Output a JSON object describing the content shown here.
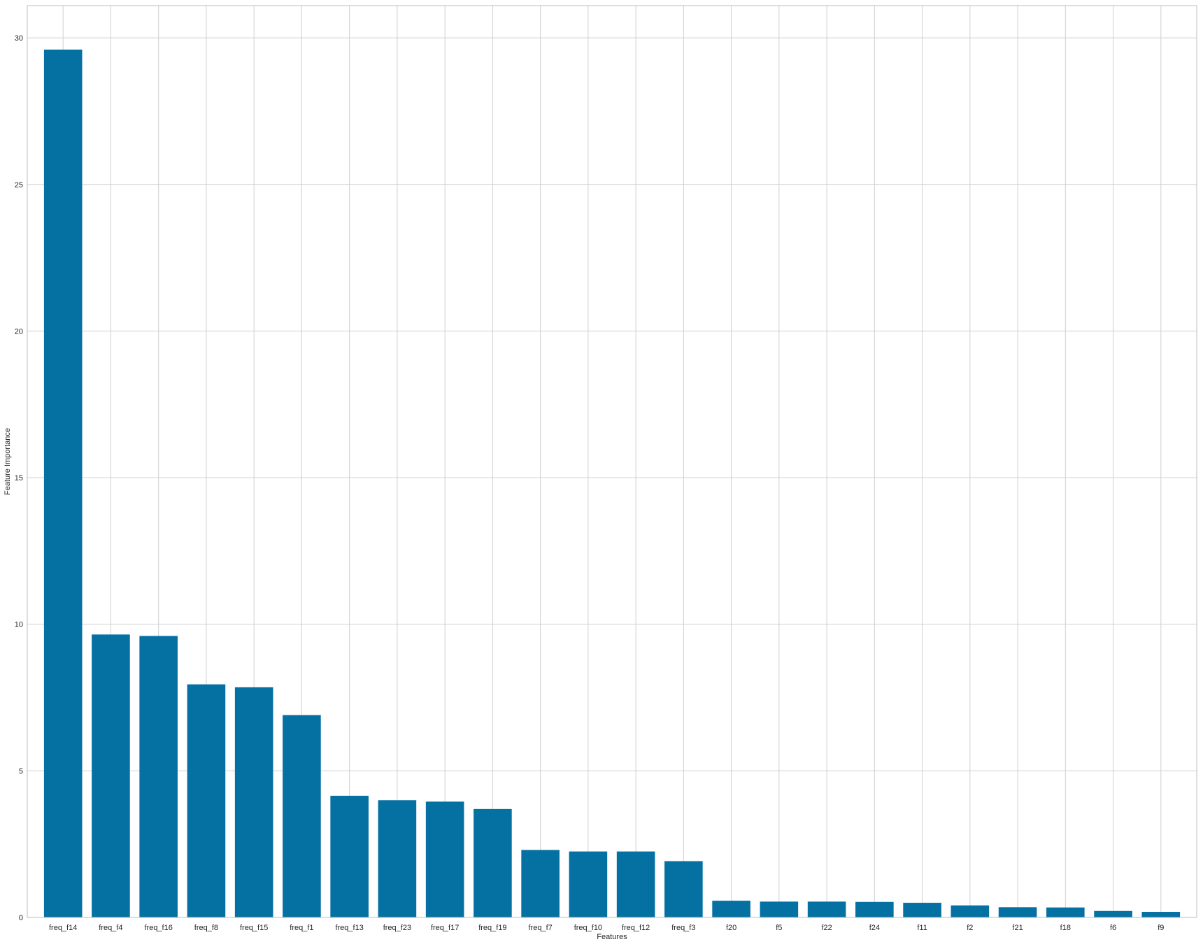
{
  "chart_data": {
    "type": "bar",
    "title": "",
    "xlabel": "Features",
    "ylabel": "Feature Importance",
    "categories": [
      "freq_f14",
      "freq_f4",
      "freq_f16",
      "freq_f8",
      "freq_f15",
      "freq_f1",
      "freq_f13",
      "freq_f23",
      "freq_f17",
      "freq_f19",
      "freq_f7",
      "freq_f10",
      "freq_f12",
      "freq_f3",
      "f20",
      "f5",
      "f22",
      "f24",
      "f11",
      "f2",
      "f21",
      "f18",
      "f6",
      "f9"
    ],
    "values": [
      29.6,
      9.65,
      9.6,
      7.95,
      7.85,
      6.9,
      4.15,
      4.0,
      3.95,
      3.7,
      2.3,
      2.25,
      2.25,
      1.92,
      0.57,
      0.54,
      0.54,
      0.53,
      0.5,
      0.41,
      0.35,
      0.34,
      0.22,
      0.19
    ],
    "ylim": [
      0,
      31.1
    ],
    "yticks": [
      0,
      5,
      10,
      15,
      20,
      25,
      30
    ],
    "grid": true,
    "colors": {
      "bar": "#0571a3",
      "grid": "#d0d0d0",
      "spine": "#bdbdbd",
      "text": "#262626",
      "background": "#ffffff"
    }
  }
}
